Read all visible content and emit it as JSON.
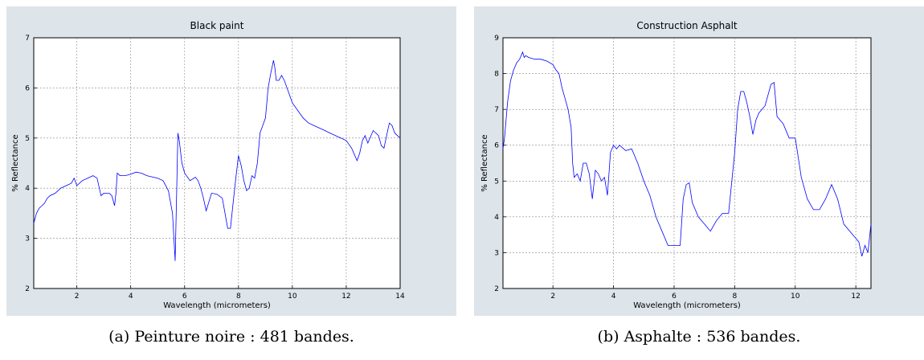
{
  "figures": [
    {
      "caption": "(a) Peinture noire : 481 bandes."
    },
    {
      "caption": "(b) Asphalte : 536 bandes."
    }
  ],
  "chart_data": [
    {
      "type": "line",
      "title": "Black paint",
      "xlabel": "Wavelength (micrometers)",
      "ylabel": "% Reflectance",
      "xlim": [
        0.4,
        14
      ],
      "ylim": [
        2,
        7
      ],
      "xticks": [
        2,
        4,
        6,
        8,
        10,
        12,
        14
      ],
      "yticks": [
        2,
        3,
        4,
        5,
        6,
        7
      ],
      "grid": true,
      "line_color": "#0000ff",
      "series": [
        {
          "x": [
            0.4,
            0.5,
            0.6,
            0.7,
            0.8,
            0.9,
            1.0,
            1.2,
            1.4,
            1.6,
            1.8,
            1.9,
            2.0,
            2.2,
            2.4,
            2.6,
            2.75,
            2.9,
            3.0,
            3.2,
            3.3,
            3.4,
            3.45,
            3.5,
            3.6,
            3.8,
            4.0,
            4.2,
            4.4,
            4.6,
            5.0,
            5.2,
            5.4,
            5.55,
            5.65,
            5.7,
            5.75,
            5.8,
            5.9,
            6.0,
            6.2,
            6.4,
            6.5,
            6.6,
            6.7,
            6.8,
            7.0,
            7.2,
            7.4,
            7.6,
            7.7,
            7.8,
            7.9,
            8.0,
            8.1,
            8.2,
            8.3,
            8.4,
            8.5,
            8.6,
            8.7,
            8.8,
            9.0,
            9.1,
            9.2,
            9.3,
            9.35,
            9.4,
            9.5,
            9.6,
            9.7,
            9.8,
            10.0,
            10.2,
            10.4,
            10.6,
            10.8,
            11.0,
            11.2,
            11.4,
            11.6,
            11.8,
            12.0,
            12.2,
            12.4,
            12.5,
            12.6,
            12.7,
            12.8,
            13.0,
            13.1,
            13.2,
            13.3,
            13.4,
            13.5,
            13.6,
            13.7,
            13.8,
            13.9,
            14.0
          ],
          "y": [
            3.3,
            3.5,
            3.6,
            3.65,
            3.7,
            3.8,
            3.85,
            3.9,
            4.0,
            4.05,
            4.1,
            4.2,
            4.05,
            4.15,
            4.2,
            4.25,
            4.2,
            3.85,
            3.9,
            3.9,
            3.85,
            3.65,
            3.9,
            4.3,
            4.25,
            4.25,
            4.28,
            4.32,
            4.3,
            4.25,
            4.2,
            4.15,
            3.95,
            3.5,
            2.55,
            3.8,
            5.1,
            4.95,
            4.5,
            4.3,
            4.15,
            4.22,
            4.15,
            4.0,
            3.8,
            3.55,
            3.9,
            3.88,
            3.8,
            3.2,
            3.2,
            3.7,
            4.2,
            4.65,
            4.45,
            4.15,
            3.95,
            4.0,
            4.25,
            4.2,
            4.5,
            5.1,
            5.4,
            6.0,
            6.3,
            6.55,
            6.4,
            6.15,
            6.15,
            6.25,
            6.15,
            6.0,
            5.7,
            5.55,
            5.4,
            5.3,
            5.25,
            5.2,
            5.15,
            5.1,
            5.05,
            5.0,
            4.95,
            4.8,
            4.55,
            4.7,
            4.95,
            5.05,
            4.9,
            5.15,
            5.1,
            5.05,
            4.85,
            4.8,
            5.05,
            5.3,
            5.25,
            5.1,
            5.05,
            5.0
          ]
        }
      ]
    },
    {
      "type": "line",
      "title": "Construction Asphalt",
      "xlabel": "Wavelength (micrometers)",
      "ylabel": "% Reflectance",
      "xlim": [
        0.35,
        12.5
      ],
      "ylim": [
        2,
        9
      ],
      "xticks": [
        2,
        4,
        6,
        8,
        10,
        12
      ],
      "yticks": [
        2,
        3,
        4,
        5,
        6,
        7,
        8,
        9
      ],
      "grid": true,
      "line_color": "#0000ff",
      "series": [
        {
          "x": [
            0.35,
            0.4,
            0.5,
            0.6,
            0.7,
            0.8,
            0.9,
            1.0,
            1.05,
            1.1,
            1.2,
            1.4,
            1.6,
            1.8,
            2.0,
            2.1,
            2.2,
            2.3,
            2.4,
            2.5,
            2.6,
            2.65,
            2.7,
            2.8,
            2.9,
            3.0,
            3.1,
            3.2,
            3.3,
            3.4,
            3.5,
            3.6,
            3.7,
            3.8,
            3.9,
            4.0,
            4.1,
            4.2,
            4.4,
            4.6,
            4.8,
            5.0,
            5.2,
            5.4,
            5.6,
            5.8,
            6.0,
            6.2,
            6.3,
            6.4,
            6.5,
            6.6,
            6.8,
            7.0,
            7.2,
            7.4,
            7.6,
            7.8,
            8.0,
            8.1,
            8.2,
            8.3,
            8.4,
            8.5,
            8.6,
            8.7,
            8.8,
            9.0,
            9.2,
            9.3,
            9.4,
            9.6,
            9.8,
            10.0,
            10.2,
            10.4,
            10.6,
            10.8,
            11.0,
            11.2,
            11.4,
            11.6,
            11.8,
            12.0,
            12.1,
            12.2,
            12.3,
            12.4,
            12.5
          ],
          "y": [
            5.9,
            6.2,
            7.2,
            7.8,
            8.1,
            8.3,
            8.4,
            8.6,
            8.45,
            8.5,
            8.45,
            8.4,
            8.4,
            8.35,
            8.25,
            8.1,
            8.0,
            7.6,
            7.3,
            7.0,
            6.5,
            5.5,
            5.1,
            5.2,
            5.0,
            5.5,
            5.5,
            5.2,
            4.5,
            5.3,
            5.2,
            5.0,
            5.1,
            4.6,
            5.8,
            6.0,
            5.9,
            6.0,
            5.85,
            5.9,
            5.5,
            5.0,
            4.6,
            4.0,
            3.6,
            3.2,
            3.2,
            3.2,
            4.5,
            4.9,
            4.95,
            4.4,
            4.0,
            3.8,
            3.6,
            3.9,
            4.1,
            4.1,
            5.8,
            7.0,
            7.5,
            7.5,
            7.2,
            6.8,
            6.3,
            6.7,
            6.9,
            7.1,
            7.7,
            7.75,
            6.8,
            6.6,
            6.2,
            6.2,
            5.1,
            4.5,
            4.2,
            4.2,
            4.5,
            4.9,
            4.5,
            3.8,
            3.6,
            3.4,
            3.3,
            2.9,
            3.2,
            3.0,
            3.8
          ]
        }
      ]
    }
  ]
}
